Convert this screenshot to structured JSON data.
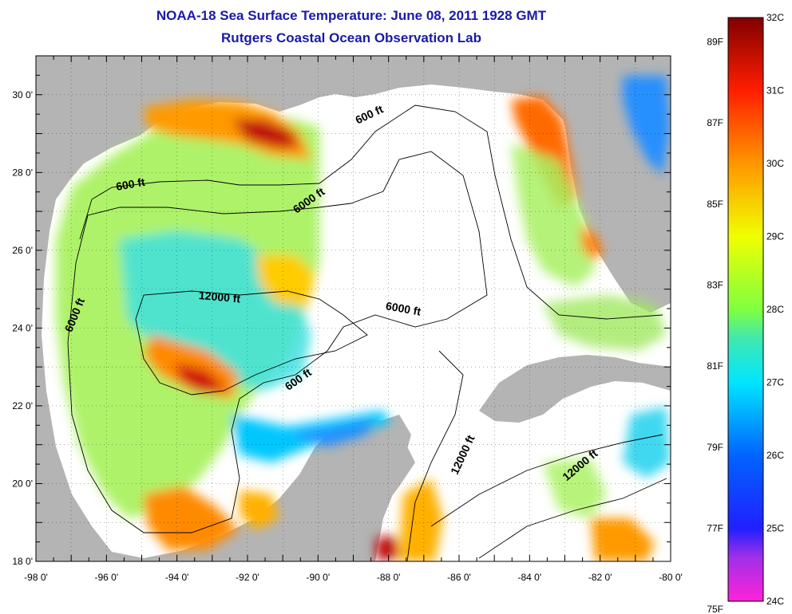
{
  "header": {
    "title": "NOAA-18 Sea Surface Temperature:  June 08, 2011 1928 GMT",
    "subtitle": "Rutgers Coastal Ocean Observation Lab"
  },
  "map": {
    "lon_range": [
      -98,
      -80
    ],
    "lat_range": [
      18,
      31
    ],
    "lon_ticks": [
      {
        "value": -98,
        "label": "-98 0'"
      },
      {
        "value": -96,
        "label": "-96 0'"
      },
      {
        "value": -94,
        "label": "-94 0'"
      },
      {
        "value": -92,
        "label": "-92 0'"
      },
      {
        "value": -90,
        "label": "-90 0'"
      },
      {
        "value": -88,
        "label": "-88 0'"
      },
      {
        "value": -86,
        "label": "-86 0'"
      },
      {
        "value": -84,
        "label": "-84 0'"
      },
      {
        "value": -82,
        "label": "-82 0'"
      },
      {
        "value": -80,
        "label": "-80 0'"
      }
    ],
    "lat_ticks": [
      {
        "value": 18,
        "label": "18 0'"
      },
      {
        "value": 20,
        "label": "20 0'"
      },
      {
        "value": 22,
        "label": "22 0'"
      },
      {
        "value": 24,
        "label": "24 0'"
      },
      {
        "value": 26,
        "label": "26 0'"
      },
      {
        "value": 28,
        "label": "28 0'"
      },
      {
        "value": 30,
        "label": "30 0'"
      }
    ],
    "grid": "dotted",
    "colors": {
      "land": "#b4b4b4",
      "nodata": "#ffffff",
      "contour": "#000000"
    },
    "contour_labels": [
      {
        "text": "600 ft",
        "lon": -95.3,
        "lat": 27.6
      },
      {
        "text": "600 ft",
        "lon": -88.5,
        "lat": 29.4
      },
      {
        "text": "6000 ft",
        "lon": -90.2,
        "lat": 27.2
      },
      {
        "text": "6000 ft",
        "lon": -96.8,
        "lat": 24.3
      },
      {
        "text": "12000 ft",
        "lon": -92.8,
        "lat": 24.7
      },
      {
        "text": "6000 ft",
        "lon": -87.6,
        "lat": 24.4
      },
      {
        "text": "600 ft",
        "lon": -90.5,
        "lat": 22.6
      },
      {
        "text": "12000 ft",
        "lon": -85.8,
        "lat": 20.7
      },
      {
        "text": "12000 ft",
        "lon": -82.5,
        "lat": 20.4
      }
    ]
  },
  "colorbar": {
    "range_c": [
      24,
      32
    ],
    "celsius_ticks": [
      {
        "value": 32,
        "label": "32C"
      },
      {
        "value": 31,
        "label": "31C"
      },
      {
        "value": 30,
        "label": "30C"
      },
      {
        "value": 29,
        "label": "29C"
      },
      {
        "value": 28,
        "label": "28C"
      },
      {
        "value": 27,
        "label": "27C"
      },
      {
        "value": 26,
        "label": "26C"
      },
      {
        "value": 25,
        "label": "25C"
      },
      {
        "value": 24,
        "label": "24C"
      }
    ],
    "fahrenheit_ticks": [
      {
        "value": 89,
        "label": "89F"
      },
      {
        "value": 87,
        "label": "87F"
      },
      {
        "value": 85,
        "label": "85F"
      },
      {
        "value": 83,
        "label": "83F"
      },
      {
        "value": 81,
        "label": "81F"
      },
      {
        "value": 79,
        "label": "79F"
      },
      {
        "value": 77,
        "label": "77F"
      },
      {
        "value": 75,
        "label": "75F"
      }
    ],
    "stops": [
      {
        "c": 24.0,
        "color": "#ff22d8"
      },
      {
        "c": 24.6,
        "color": "#a030e8"
      },
      {
        "c": 25.0,
        "color": "#2020ff"
      },
      {
        "c": 26.0,
        "color": "#0064ff"
      },
      {
        "c": 27.0,
        "color": "#00e6ff"
      },
      {
        "c": 27.6,
        "color": "#40e8b0"
      },
      {
        "c": 28.0,
        "color": "#80ff40"
      },
      {
        "c": 29.0,
        "color": "#f0ff00"
      },
      {
        "c": 30.0,
        "color": "#ff9600"
      },
      {
        "c": 31.0,
        "color": "#ff1e00"
      },
      {
        "c": 32.0,
        "color": "#800000"
      }
    ]
  }
}
